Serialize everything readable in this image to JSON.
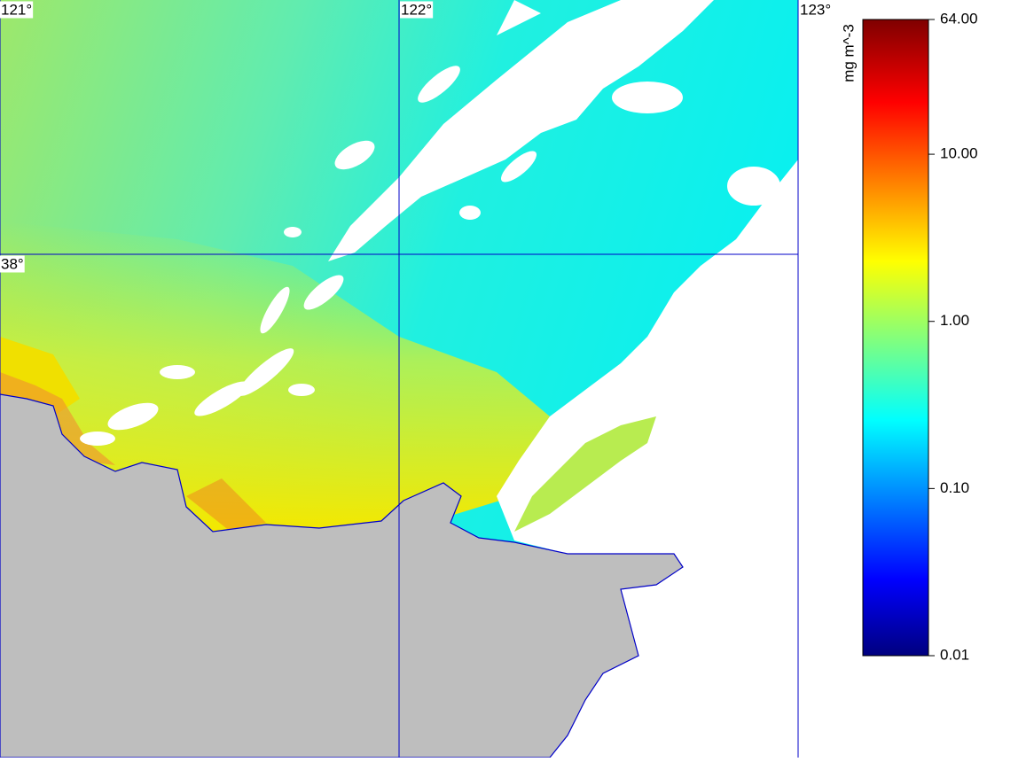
{
  "map": {
    "lon_labels": [
      {
        "value": 121,
        "label": "121°"
      },
      {
        "value": 122,
        "label": "122°"
      },
      {
        "value": 123,
        "label": "123°"
      }
    ],
    "lat_labels": [
      {
        "value": 38,
        "label": "38°"
      }
    ],
    "colorbar": {
      "label": "mg m^-3",
      "log": true,
      "lim": [
        0.01,
        64
      ],
      "ticks": [
        {
          "value": 64,
          "label": "64.00"
        },
        {
          "value": 10,
          "label": "10.00"
        },
        {
          "value": 1,
          "label": "1.00"
        },
        {
          "value": 0.1,
          "label": "0.10"
        },
        {
          "value": 0.01,
          "label": "0.01"
        }
      ]
    }
  }
}
